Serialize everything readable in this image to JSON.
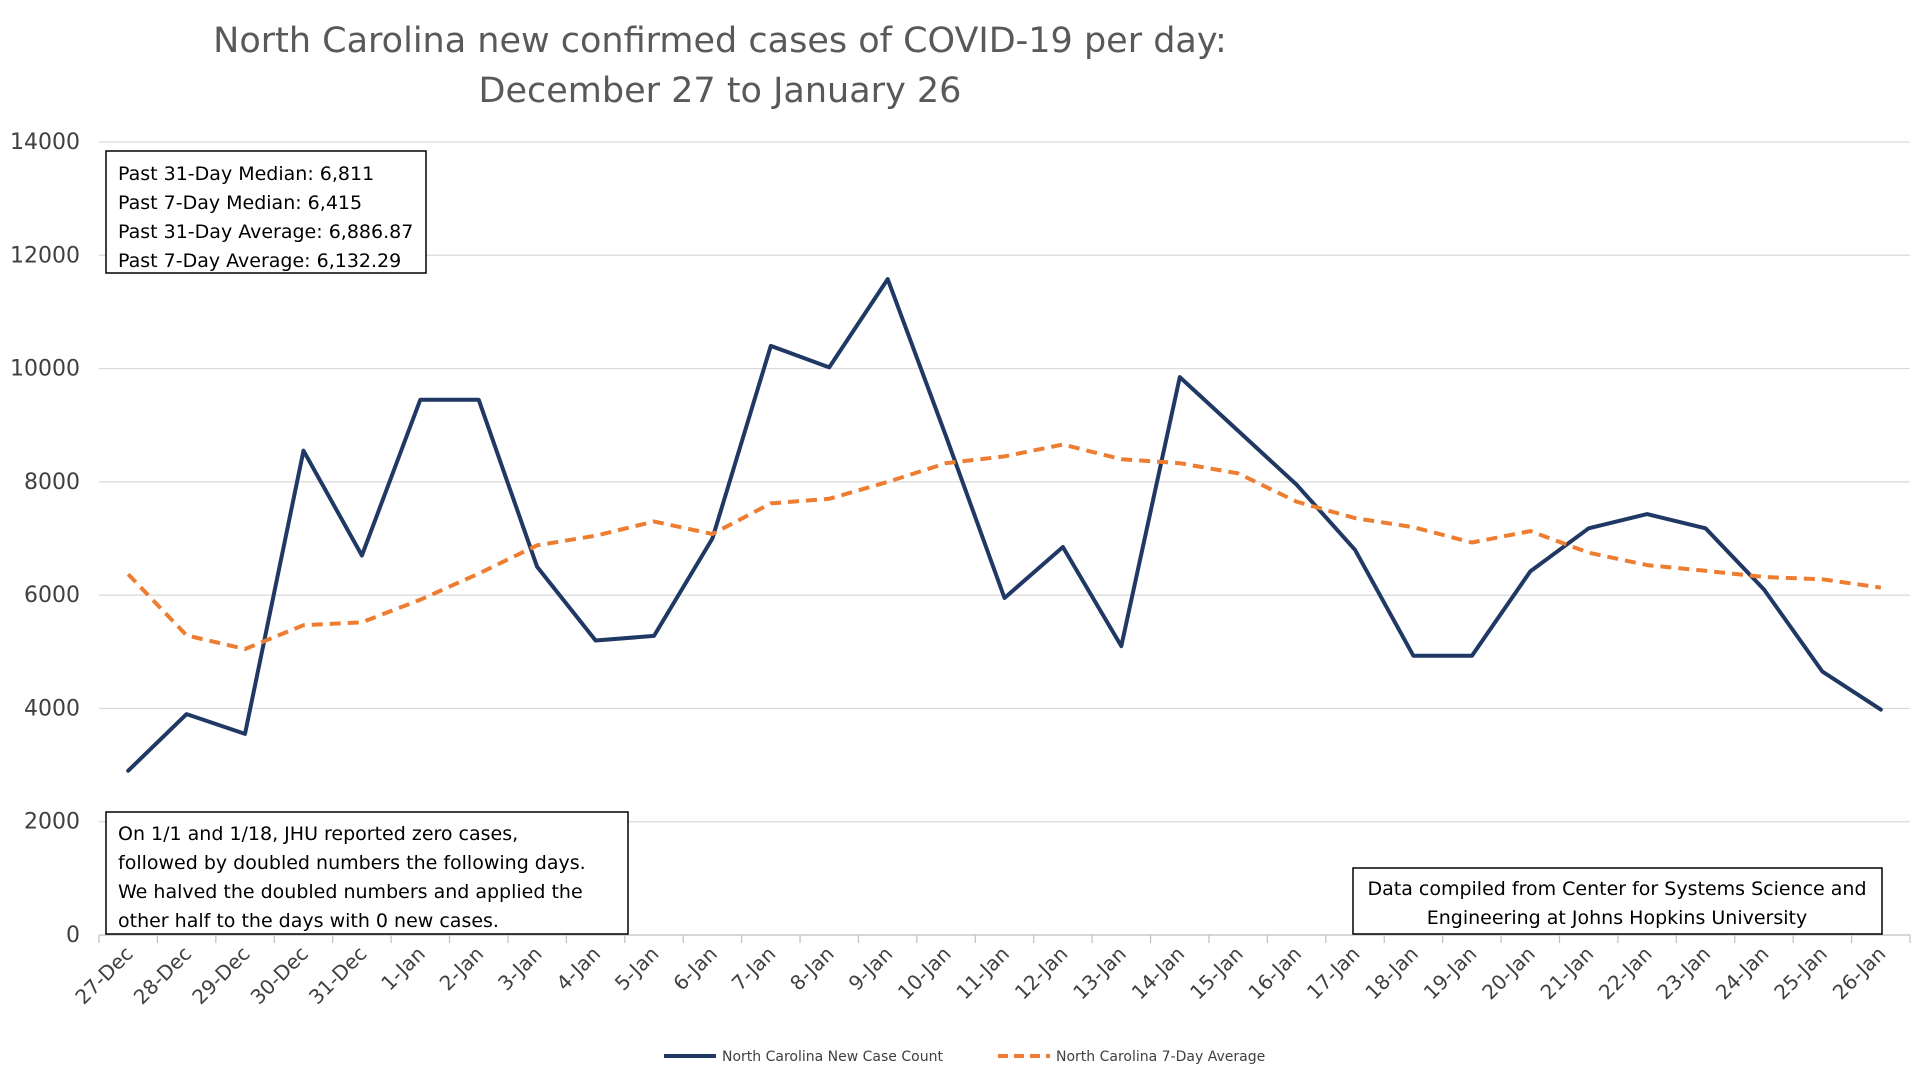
{
  "chart_data": {
    "type": "line",
    "title": [
      "North Carolina new confirmed cases of COVID-19 per day:",
      "December 27 to January 26"
    ],
    "xlabel": "",
    "ylabel": "",
    "ylim": [
      0,
      14000
    ],
    "yticks": [
      "0",
      "2000",
      "4000",
      "6000",
      "8000",
      "10000",
      "12000",
      "14000"
    ],
    "grid": true,
    "legend_position": "bottom",
    "categories": [
      "27-Dec",
      "28-Dec",
      "29-Dec",
      "30-Dec",
      "31-Dec",
      "1-Jan",
      "2-Jan",
      "3-Jan",
      "4-Jan",
      "5-Jan",
      "6-Jan",
      "7-Jan",
      "8-Jan",
      "9-Jan",
      "10-Jan",
      "11-Jan",
      "12-Jan",
      "13-Jan",
      "14-Jan",
      "15-Jan",
      "16-Jan",
      "17-Jan",
      "18-Jan",
      "19-Jan",
      "20-Jan",
      "21-Jan",
      "22-Jan",
      "23-Jan",
      "24-Jan",
      "25-Jan",
      "26-Jan"
    ],
    "series": [
      {
        "name": "North Carolina New Case Count",
        "color": "#203864",
        "style": "solid",
        "values": [
          2900,
          3900,
          3550,
          8550,
          6700,
          9450,
          9450,
          6500,
          5200,
          5280,
          7000,
          10400,
          10020,
          11580,
          8800,
          5950,
          6850,
          5100,
          9850,
          8900,
          7950,
          6800,
          4930,
          4930,
          6420,
          7180,
          7430,
          7180,
          6100,
          4650,
          3980
        ]
      },
      {
        "name": "North Carolina 7-Day Average",
        "color": "#ED7D31",
        "style": "dashed",
        "values": [
          6370,
          5290,
          5050,
          5470,
          5520,
          5920,
          6380,
          6880,
          7050,
          7300,
          7080,
          7620,
          7700,
          8000,
          8330,
          8450,
          8660,
          8400,
          8330,
          8150,
          7650,
          7360,
          7200,
          6930,
          7130,
          6750,
          6530,
          6430,
          6320,
          6280,
          6132.29
        ]
      }
    ],
    "annotations": {
      "stats_box": [
        "Past 31-Day Median: 6,811",
        "Past 7-Day Median: 6,415",
        "Past 31-Day Average: 6,886.87",
        "Past 7-Day Average: 6,132.29"
      ],
      "note_box": [
        "On 1/1 and 1/18, JHU reported zero cases,",
        "followed by doubled numbers the following days.",
        "We halved the doubled numbers and applied the",
        "other half to the days with 0 new cases."
      ],
      "source_box": [
        "Data compiled from Center for Systems Science and",
        "Engineering at Johns Hopkins University"
      ]
    }
  }
}
